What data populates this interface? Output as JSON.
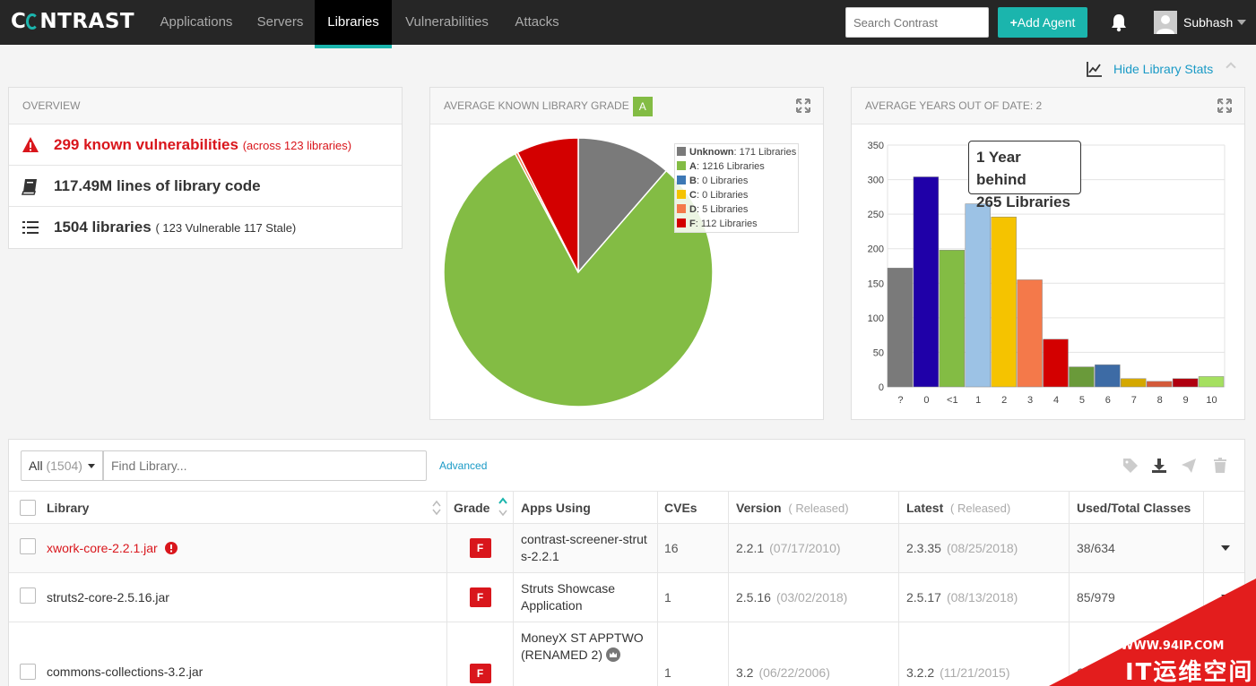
{
  "nav": {
    "logo": "C  NTRAST",
    "items": [
      {
        "label": "Applications",
        "active": false
      },
      {
        "label": "Servers",
        "active": false
      },
      {
        "label": "Libraries",
        "active": true
      },
      {
        "label": "Vulnerabilities",
        "active": false
      },
      {
        "label": "Attacks",
        "active": false
      }
    ],
    "search_placeholder": "Search Contrast",
    "add_agent": "Add Agent",
    "user": "Subhash"
  },
  "hide_stats": "Hide Library Stats",
  "overview": {
    "title": "OVERVIEW",
    "vulns": "299 known vulnerabilities",
    "vulns_sub": "(across 123 libraries)",
    "lines": "117.49M lines of library code",
    "libs": "1504 libraries",
    "libs_sub": "( 123 Vulnerable 117 Stale)"
  },
  "grade_panel": {
    "title": "AVERAGE KNOWN LIBRARY GRADE",
    "grade": "A"
  },
  "years_panel": {
    "title": "AVERAGE YEARS OUT OF DATE: 2",
    "tooltip_line1": "1 Year behind",
    "tooltip_line2": "265 Libraries"
  },
  "chart_data": [
    {
      "type": "pie",
      "slices": [
        {
          "label": "Unknown",
          "value": 171,
          "text": ": 171 Libraries",
          "color": "#7a7a7a"
        },
        {
          "label": "A",
          "value": 1216,
          "text": ": 1216 Libraries",
          "color": "#83bc44"
        },
        {
          "label": "B",
          "value": 0,
          "text": ": 0 Libraries",
          "color": "#3d78b5"
        },
        {
          "label": "C",
          "value": 0,
          "text": ": 0 Libraries",
          "color": "#f5c300"
        },
        {
          "label": "D",
          "value": 5,
          "text": ": 5 Libraries",
          "color": "#f4794a"
        },
        {
          "label": "F",
          "value": 112,
          "text": ": 112 Libraries",
          "color": "#d30000"
        }
      ]
    },
    {
      "type": "bar",
      "categories": [
        "?",
        "0",
        "<1",
        "1",
        "2",
        "3",
        "4",
        "5",
        "6",
        "7",
        "8",
        "9",
        "10"
      ],
      "values": [
        172,
        304,
        198,
        265,
        246,
        155,
        69,
        29,
        32,
        12,
        8,
        12,
        15
      ],
      "colors": [
        "#7a7a7a",
        "#1f00a8",
        "#83bc44",
        "#9cc2e5",
        "#f5c300",
        "#f4794a",
        "#d30000",
        "#6a9a3a",
        "#3d6ba5",
        "#d4a800",
        "#d45a3a",
        "#b00010",
        "#a5e060"
      ],
      "yticks": [
        0,
        50,
        100,
        150,
        200,
        250,
        300,
        350
      ],
      "ylim": [
        0,
        350
      ]
    }
  ],
  "library_table": {
    "filter": "All",
    "filter_count": "(1504)",
    "find_placeholder": "Find Library...",
    "advanced": "Advanced",
    "columns": {
      "library": "Library",
      "grade": "Grade",
      "apps": "Apps Using",
      "cves": "CVEs",
      "version": "Version",
      "version_rel": "( Released)",
      "latest": "Latest",
      "latest_rel": "( Released)",
      "classes": "Used/Total Classes"
    },
    "rows": [
      {
        "name": "xwork-core-2.2.1.jar",
        "grade": "F",
        "apps": "contrast-screener-struts-2.2.1",
        "cves": "16",
        "version": "2.2.1",
        "version_date": "(07/17/2010)",
        "latest": "2.3.35",
        "latest_date": "(08/25/2018)",
        "classes": "38/634"
      },
      {
        "name": "struts2-core-2.5.16.jar",
        "grade": "F",
        "apps": "Struts Showcase Application",
        "cves": "1",
        "version": "2.5.16",
        "version_date": "(03/02/2018)",
        "latest": "2.5.17",
        "latest_date": "(08/13/2018)",
        "classes": "85/979"
      },
      {
        "name": "commons-collections-3.2.jar",
        "grade": "F",
        "apps": "MoneyX ST APPTWO (RENAMED 2)",
        "cves": "1",
        "version": "3.2",
        "version_date": "(06/22/2006)",
        "latest": "3.2.2",
        "latest_date": "(11/21/2015)",
        "classes": "6"
      }
    ]
  },
  "watermark": {
    "line1": "WWW.94IP.COM",
    "line2": "IT运维空间"
  }
}
